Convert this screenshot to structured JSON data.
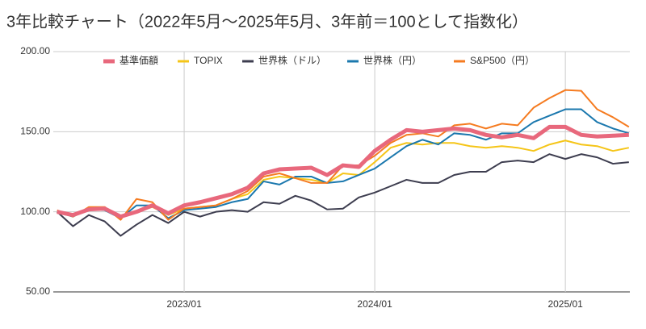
{
  "chart_data": {
    "type": "line",
    "title": "3年比較チャート（2022年5月〜2025年5月、3年前＝100として指数化）",
    "categories": [
      null,
      null,
      null,
      null,
      null,
      null,
      null,
      null,
      "2023/01",
      null,
      null,
      null,
      null,
      null,
      null,
      null,
      null,
      null,
      null,
      null,
      "2024/01",
      null,
      null,
      null,
      null,
      null,
      null,
      null,
      null,
      null,
      null,
      null,
      "2025/01",
      null,
      null,
      null,
      null
    ],
    "series": [
      {
        "name": "基準価額",
        "color": "#e8687c",
        "values": [
          100,
          98,
          101.5,
          102,
          97,
          100,
          104,
          99,
          104,
          106,
          108.5,
          111,
          115,
          124,
          126.5,
          127,
          127.5,
          123,
          129,
          128,
          138,
          145,
          151,
          150,
          151,
          152,
          151,
          148,
          146.5,
          148,
          146,
          153,
          153,
          148,
          147,
          147.5,
          148
        ]
      },
      {
        "name": "TOPIX",
        "color": "#f5c518",
        "values": [
          100,
          97,
          102,
          102,
          97,
          100,
          103,
          98,
          102,
          103,
          104,
          108,
          111,
          120,
          122,
          121,
          120,
          118,
          124,
          123,
          131,
          140,
          143,
          142,
          143,
          143,
          141,
          140,
          141,
          140,
          138,
          142,
          144.5,
          142,
          141,
          138,
          140
        ]
      },
      {
        "name": "世界株（ドル）",
        "color": "#3d3d4f",
        "values": [
          100,
          91,
          98,
          94,
          85,
          92,
          98,
          93,
          100,
          97,
          100,
          101,
          100,
          106,
          105,
          110,
          107,
          101.5,
          102,
          109,
          112,
          116,
          120,
          118,
          118,
          123,
          125,
          125,
          131,
          132,
          131,
          136,
          133,
          136,
          134,
          130,
          131
        ]
      },
      {
        "name": "世界株（円）",
        "color": "#1b78ae",
        "values": [
          100,
          97,
          102,
          101,
          96,
          104,
          104,
          96,
          101,
          102,
          103,
          106,
          108,
          119,
          117,
          122,
          122,
          118,
          119,
          123,
          127,
          134,
          141,
          145,
          142,
          149,
          148,
          145,
          149,
          149,
          156,
          160,
          164,
          164,
          156,
          152,
          149
        ]
      },
      {
        "name": "S&P500（円）",
        "color": "#f57b20",
        "values": [
          101,
          97,
          103,
          103,
          95,
          108,
          106,
          95,
          102,
          103,
          104,
          108,
          113,
          122,
          124,
          121,
          118,
          118,
          129,
          129,
          135,
          143,
          148,
          149,
          147,
          154,
          155,
          152,
          155,
          154,
          165,
          171,
          176,
          175.5,
          164,
          159,
          153
        ]
      }
    ],
    "ylim": [
      50,
      200
    ],
    "yticks": [
      {
        "value": 50,
        "label": "50.00"
      },
      {
        "value": 100,
        "label": "100.00"
      },
      {
        "value": 150,
        "label": "150.00"
      },
      {
        "value": 200,
        "label": "200.00"
      }
    ],
    "grid": true,
    "legend": "top"
  }
}
